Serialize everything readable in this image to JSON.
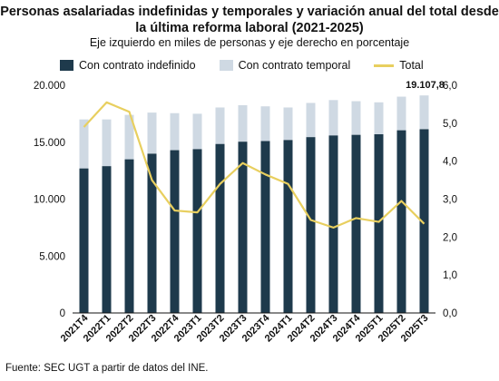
{
  "chart_data": {
    "type": "bar",
    "title": "Personas asalariadas indefinidas y temporales y variación anual del total desde la última reforma laboral (2021-2025)",
    "subtitle": "Eje izquierdo en miles de personas y eje derecho en porcentaje",
    "categories": [
      "2021T4",
      "2022T1",
      "2022T2",
      "2022T3",
      "2022T4",
      "2023T1",
      "2023T2",
      "2023T3",
      "2023T4",
      "2024T1",
      "2024T2",
      "2024T3",
      "2024T4",
      "2025T1",
      "2025T2",
      "2025T3"
    ],
    "stacked": true,
    "series": [
      {
        "name": "Con contrato indefinido",
        "axis": "left",
        "type": "bar",
        "color": "#1e3a4c",
        "values": [
          12700,
          12900,
          13500,
          14000,
          14300,
          14400,
          14850,
          15050,
          15100,
          15200,
          15450,
          15600,
          15650,
          15700,
          16050,
          16150
        ]
      },
      {
        "name": "Con contrato temporal",
        "axis": "left",
        "type": "bar",
        "color": "#cfd9e3",
        "values": [
          4300,
          4100,
          3900,
          3600,
          3250,
          3100,
          3200,
          3200,
          3050,
          2850,
          3000,
          3100,
          2950,
          2800,
          2950,
          2958
        ]
      },
      {
        "name": "Total",
        "axis": "right",
        "type": "line",
        "color": "#e8cf5f",
        "values": [
          4.9,
          5.55,
          5.3,
          3.5,
          2.7,
          2.65,
          3.4,
          3.95,
          3.65,
          3.4,
          2.45,
          2.25,
          2.5,
          2.4,
          2.95,
          2.35
        ]
      }
    ],
    "y_left": {
      "min": 0,
      "max": 20000,
      "ticks": [
        "0",
        "5.000",
        "10.000",
        "15.000",
        "20.000"
      ]
    },
    "y_right": {
      "min": 0,
      "max": 6,
      "ticks": [
        "0,0",
        "1,0",
        "2,0",
        "3,0",
        "4,0",
        "5,0",
        "6,0"
      ]
    },
    "data_labels": [
      {
        "category": "2025T3",
        "text": "19.107,8"
      }
    ],
    "legend": "top",
    "grid": false
  },
  "source": "Fuente: SEC UGT a partir de datos del INE."
}
